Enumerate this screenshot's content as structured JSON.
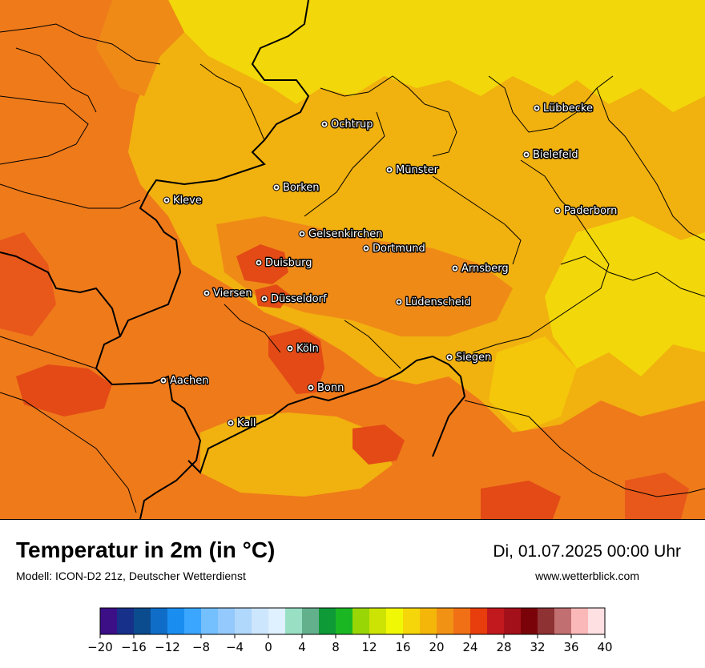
{
  "map": {
    "base_color": "#f1b10f",
    "regions": [
      {
        "name": "hot-core-rhine",
        "color": "#e34a16"
      },
      {
        "name": "warm-west",
        "color": "#ef7a1a"
      },
      {
        "name": "mild-north",
        "color": "#f2d70a"
      }
    ],
    "cities": [
      {
        "name": "Lübbecke"
      },
      {
        "name": "Ochtrup"
      },
      {
        "name": "Bielefeld"
      },
      {
        "name": "Münster"
      },
      {
        "name": "Borken"
      },
      {
        "name": "Kleve"
      },
      {
        "name": "Paderborn"
      },
      {
        "name": "Gelsenkirchen"
      },
      {
        "name": "Dortmund"
      },
      {
        "name": "Duisburg"
      },
      {
        "name": "Arnsberg"
      },
      {
        "name": "Viersen"
      },
      {
        "name": "Düsseldorf"
      },
      {
        "name": "Lüdenscheid"
      },
      {
        "name": "Köln"
      },
      {
        "name": "Siegen"
      },
      {
        "name": "Aachen"
      },
      {
        "name": "Bonn"
      },
      {
        "name": "Kall"
      }
    ]
  },
  "footer": {
    "title": "Temperatur in 2m (in °C)",
    "subtitle": "Modell: ICON-D2 21z, Deutscher Wetterdienst",
    "datetime": "Di, 01.07.2025 00:00 Uhr",
    "website": "www.wetterblick.com"
  },
  "scale": {
    "colors": [
      "#3c0f87",
      "#17308a",
      "#0b4c8e",
      "#0f6dc8",
      "#1a8ef0",
      "#3aa6ff",
      "#74bffe",
      "#93c9fc",
      "#b0d8fc",
      "#cce6fd",
      "#dff0fe",
      "#98dfc4",
      "#63b08d",
      "#0d9a37",
      "#1bb723",
      "#99d606",
      "#cde304",
      "#f1f806",
      "#f5d60a",
      "#f4b709",
      "#f29214",
      "#f17015",
      "#e83d0c",
      "#c1191d",
      "#a3101a",
      "#7a0309",
      "#8e3234",
      "#c26f71",
      "#fbb8b8",
      "#fee0e2"
    ],
    "ticks": [
      "−20",
      "−16",
      "−12",
      "−8",
      "−4",
      "0",
      "4",
      "8",
      "12",
      "16",
      "20",
      "24",
      "28",
      "32",
      "36",
      "40"
    ]
  }
}
